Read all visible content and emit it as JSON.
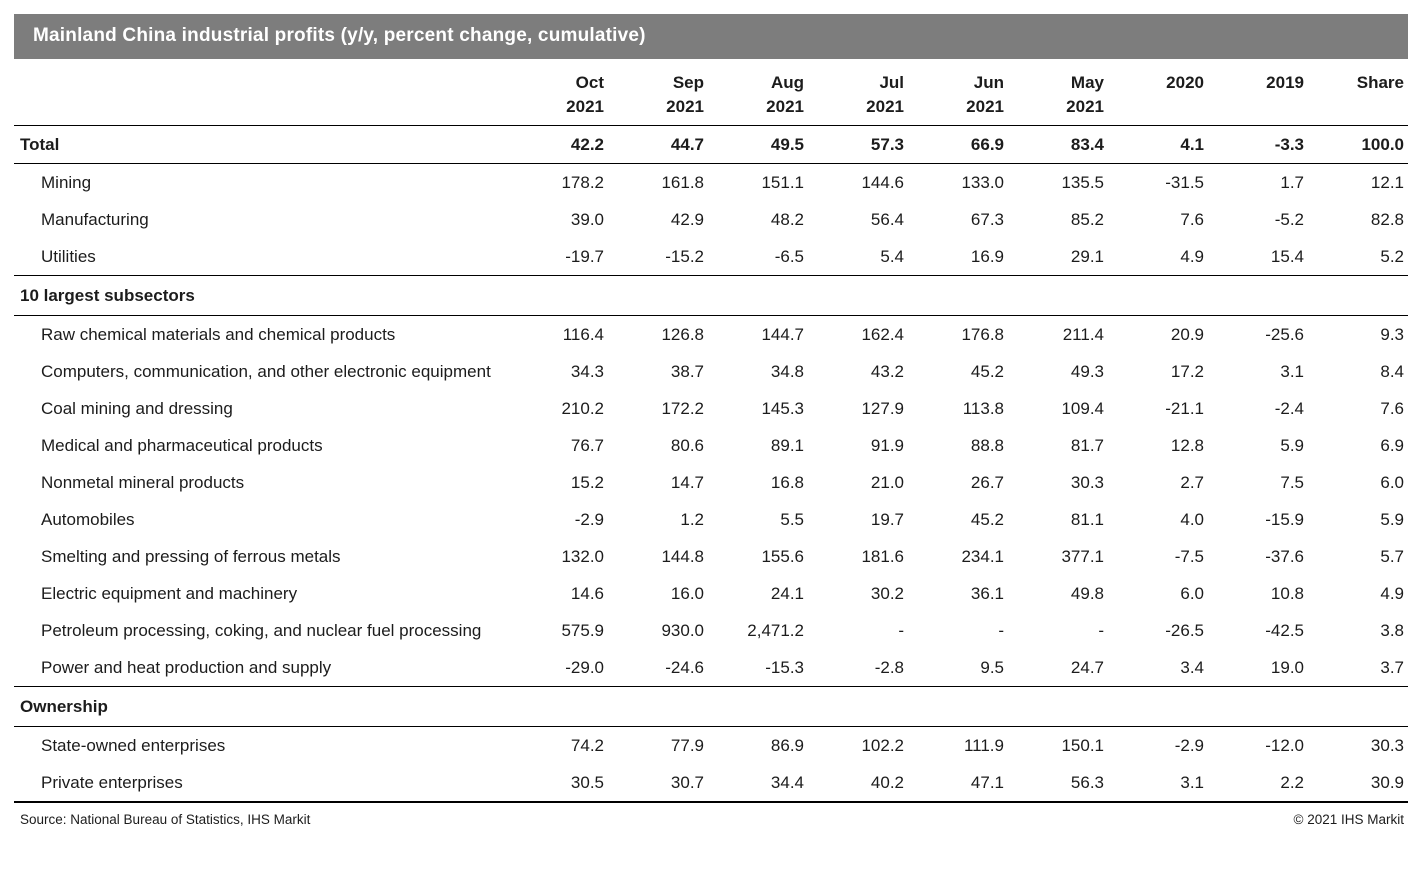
{
  "chart_data": {
    "type": "table",
    "title": "Mainland China industrial profits (y/y, percent change, cumulative)",
    "columns": [
      {
        "top": "Oct",
        "bottom": "2021"
      },
      {
        "top": "Sep",
        "bottom": "2021"
      },
      {
        "top": "Aug",
        "bottom": "2021"
      },
      {
        "top": "Jul",
        "bottom": "2021"
      },
      {
        "top": "Jun",
        "bottom": "2021"
      },
      {
        "top": "May",
        "bottom": "2021"
      },
      {
        "top": "2020",
        "bottom": ""
      },
      {
        "top": "2019",
        "bottom": ""
      },
      {
        "top": "Share",
        "bottom": ""
      }
    ],
    "rows": [
      {
        "kind": "data",
        "bold": true,
        "indent": false,
        "rule": "thin",
        "label": "Total",
        "values": [
          "42.2",
          "44.7",
          "49.5",
          "57.3",
          "66.9",
          "83.4",
          "4.1",
          "-3.3",
          "100.0"
        ]
      },
      {
        "kind": "data",
        "bold": false,
        "indent": true,
        "rule": "none",
        "label": "Mining",
        "values": [
          "178.2",
          "161.8",
          "151.1",
          "144.6",
          "133.0",
          "135.5",
          "-31.5",
          "1.7",
          "12.1"
        ]
      },
      {
        "kind": "data",
        "bold": false,
        "indent": true,
        "rule": "none",
        "label": "Manufacturing",
        "values": [
          "39.0",
          "42.9",
          "48.2",
          "56.4",
          "67.3",
          "85.2",
          "7.6",
          "-5.2",
          "82.8"
        ]
      },
      {
        "kind": "data",
        "bold": false,
        "indent": true,
        "rule": "thin",
        "label": "Utilities",
        "values": [
          "-19.7",
          "-15.2",
          "-6.5",
          "5.4",
          "16.9",
          "29.1",
          "4.9",
          "15.4",
          "5.2"
        ]
      },
      {
        "kind": "section",
        "rule": "thin",
        "label": "10 largest subsectors"
      },
      {
        "kind": "data",
        "bold": false,
        "indent": true,
        "rule": "none",
        "label": "Raw chemical materials and chemical products",
        "values": [
          "116.4",
          "126.8",
          "144.7",
          "162.4",
          "176.8",
          "211.4",
          "20.9",
          "-25.6",
          "9.3"
        ]
      },
      {
        "kind": "data",
        "bold": false,
        "indent": true,
        "rule": "none",
        "label": "Computers, communication, and other electronic equipment",
        "values": [
          "34.3",
          "38.7",
          "34.8",
          "43.2",
          "45.2",
          "49.3",
          "17.2",
          "3.1",
          "8.4"
        ]
      },
      {
        "kind": "data",
        "bold": false,
        "indent": true,
        "rule": "none",
        "label": "Coal mining and dressing",
        "values": [
          "210.2",
          "172.2",
          "145.3",
          "127.9",
          "113.8",
          "109.4",
          "-21.1",
          "-2.4",
          "7.6"
        ]
      },
      {
        "kind": "data",
        "bold": false,
        "indent": true,
        "rule": "none",
        "label": "Medical and pharmaceutical products",
        "values": [
          "76.7",
          "80.6",
          "89.1",
          "91.9",
          "88.8",
          "81.7",
          "12.8",
          "5.9",
          "6.9"
        ]
      },
      {
        "kind": "data",
        "bold": false,
        "indent": true,
        "rule": "none",
        "label": "Nonmetal mineral products",
        "values": [
          "15.2",
          "14.7",
          "16.8",
          "21.0",
          "26.7",
          "30.3",
          "2.7",
          "7.5",
          "6.0"
        ]
      },
      {
        "kind": "data",
        "bold": false,
        "indent": true,
        "rule": "none",
        "label": "Automobiles",
        "values": [
          "-2.9",
          "1.2",
          "5.5",
          "19.7",
          "45.2",
          "81.1",
          "4.0",
          "-15.9",
          "5.9"
        ]
      },
      {
        "kind": "data",
        "bold": false,
        "indent": true,
        "rule": "none",
        "label": "Smelting and pressing of ferrous metals",
        "values": [
          "132.0",
          "144.8",
          "155.6",
          "181.6",
          "234.1",
          "377.1",
          "-7.5",
          "-37.6",
          "5.7"
        ]
      },
      {
        "kind": "data",
        "bold": false,
        "indent": true,
        "rule": "none",
        "label": "Electric equipment and machinery",
        "values": [
          "14.6",
          "16.0",
          "24.1",
          "30.2",
          "36.1",
          "49.8",
          "6.0",
          "10.8",
          "4.9"
        ]
      },
      {
        "kind": "data",
        "bold": false,
        "indent": true,
        "rule": "none",
        "label": "Petroleum processing, coking, and nuclear fuel processing",
        "values": [
          "575.9",
          "930.0",
          "2,471.2",
          "-",
          "-",
          "-",
          "-26.5",
          "-42.5",
          "3.8"
        ]
      },
      {
        "kind": "data",
        "bold": false,
        "indent": true,
        "rule": "thin",
        "label": "Power and heat production and supply",
        "values": [
          "-29.0",
          "-24.6",
          "-15.3",
          "-2.8",
          "9.5",
          "24.7",
          "3.4",
          "19.0",
          "3.7"
        ]
      },
      {
        "kind": "section",
        "rule": "thin",
        "label": "Ownership"
      },
      {
        "kind": "data",
        "bold": false,
        "indent": true,
        "rule": "none",
        "label": "State-owned enterprises",
        "values": [
          "74.2",
          "77.9",
          "86.9",
          "102.2",
          "111.9",
          "150.1",
          "-2.9",
          "-12.0",
          "30.3"
        ]
      },
      {
        "kind": "data",
        "bold": false,
        "indent": true,
        "rule": "thick",
        "label": "Private enterprises",
        "values": [
          "30.5",
          "30.7",
          "34.4",
          "40.2",
          "47.1",
          "56.3",
          "3.1",
          "2.2",
          "30.9"
        ]
      }
    ],
    "footer": {
      "source": "Source: National Bureau of Statistics, IHS Markit",
      "copyright": "© 2021 IHS Markit"
    }
  }
}
